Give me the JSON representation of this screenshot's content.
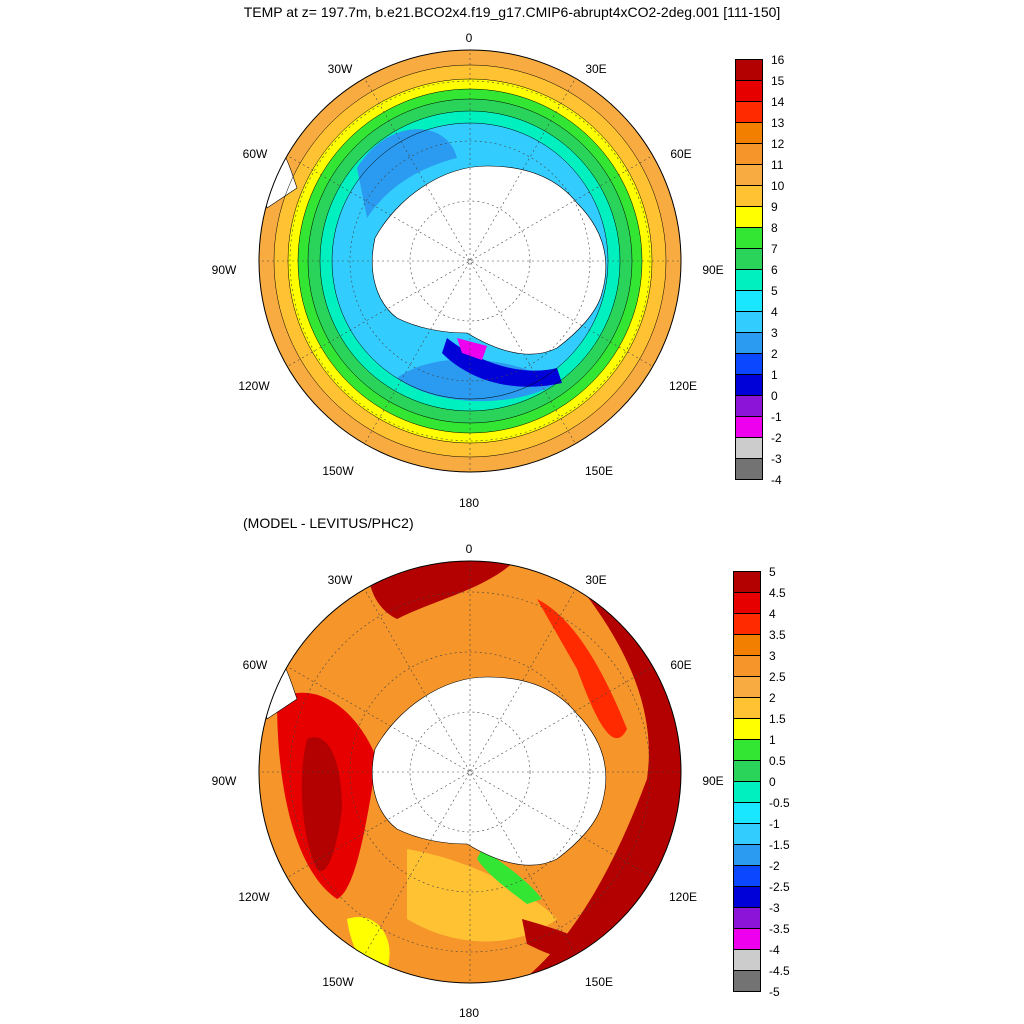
{
  "header": {
    "title": "TEMP at z= 197.7m, b.e21.BCO2x4.f19_g17.CMIP6-abrupt4xCO2-2deg.001 [111-150]"
  },
  "panels": [
    {
      "id": "temperature",
      "subtitle": "",
      "lon_labels": [
        "0",
        "30E",
        "60E",
        "90E",
        "120E",
        "150E",
        "180",
        "150W",
        "120W",
        "90W",
        "60W",
        "30W"
      ],
      "colorbar": {
        "labels": [
          "16",
          "15",
          "14",
          "13",
          "12",
          "11",
          "10",
          "9",
          "8",
          "7",
          "6",
          "5",
          "4",
          "3",
          "2",
          "1",
          "0",
          "-1",
          "-2",
          "-3",
          "-4"
        ],
        "colors": [
          "#b30000",
          "#e60000",
          "#ff2a00",
          "#f27f00",
          "#f5952a",
          "#f7ab40",
          "#ffc233",
          "#ffff00",
          "#33e633",
          "#2ad45a",
          "#00f0c0",
          "#19e6ff",
          "#33ccff",
          "#2a9bf0",
          "#0a47ff",
          "#0000d9",
          "#8c14d9",
          "#ee00ee",
          "#cccccc",
          "#737373"
        ]
      }
    },
    {
      "id": "difference",
      "subtitle": "(MODEL - LEVITUS/PHC2)",
      "lon_labels": [
        "0",
        "30E",
        "60E",
        "90E",
        "120E",
        "150E",
        "180",
        "150W",
        "120W",
        "90W",
        "60W",
        "30W"
      ],
      "colorbar": {
        "labels": [
          "5",
          "4.5",
          "4",
          "3.5",
          "3",
          "2.5",
          "2",
          "1.5",
          "1",
          "0.5",
          "0",
          "-0.5",
          "-1",
          "-1.5",
          "-2",
          "-2.5",
          "-3",
          "-3.5",
          "-4",
          "-4.5",
          "-5"
        ],
        "colors": [
          "#b30000",
          "#e60000",
          "#ff2a00",
          "#f27f00",
          "#f5952a",
          "#f7ab40",
          "#ffc233",
          "#ffff00",
          "#33e633",
          "#2ad45a",
          "#00f0c0",
          "#19e6ff",
          "#33ccff",
          "#2a9bf0",
          "#0a47ff",
          "#0000d9",
          "#8c14d9",
          "#ee00ee",
          "#cccccc",
          "#737373"
        ]
      }
    }
  ]
}
